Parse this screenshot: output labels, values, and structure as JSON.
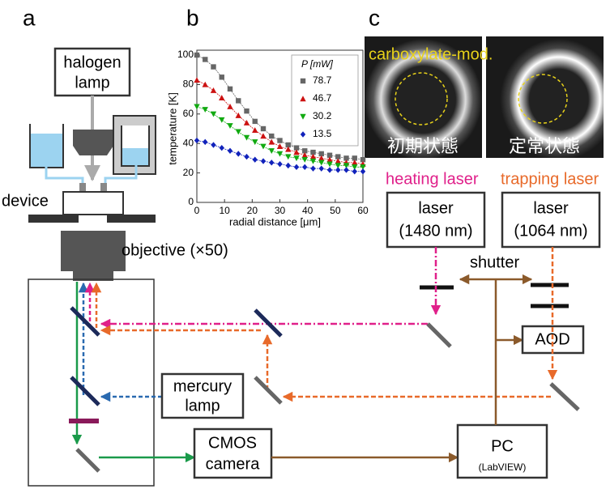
{
  "panel_labels": [
    "a",
    "b",
    "c"
  ],
  "labels": {
    "halogen_lamp": [
      "halogen",
      "lamp"
    ],
    "device": "device",
    "objective": "objective (×50)",
    "mercury_lamp": [
      "mercury",
      "lamp"
    ],
    "cmos_camera": [
      "CMOS",
      "camera"
    ],
    "pc": [
      "PC",
      "(LabVIEW)"
    ],
    "heating_laser": "heating laser",
    "trapping_laser": "trapping laser",
    "laser_1480": [
      "laser",
      "(1480 nm)"
    ],
    "laser_1064": [
      "laser",
      "(1064 nm)"
    ],
    "shutter": "shutter",
    "aod": "AOD",
    "carboxylate": "carboxylate-mod.",
    "initial_state": "初期状態",
    "steady_state": "定常状態"
  },
  "chart_data": {
    "type": "scatter_line",
    "xlabel": "radial distance [μm]",
    "ylabel": "temperature [K]",
    "legend_title": "P [mW]",
    "x": [
      0,
      3,
      6,
      9,
      12,
      15,
      18,
      21,
      24,
      27,
      30,
      33,
      36,
      39,
      42,
      45,
      48,
      51,
      54,
      57,
      60
    ],
    "series": [
      {
        "name": "78.7",
        "color": "#666666",
        "marker": "square",
        "values": [
          100,
          97,
          92,
          85,
          77,
          69,
          62,
          55,
          50,
          45,
          42,
          39,
          37,
          35,
          34,
          33,
          32,
          31,
          30,
          30,
          29
        ]
      },
      {
        "name": "46.7",
        "color": "#cc1111",
        "marker": "triangle-up",
        "values": [
          83,
          80,
          76,
          71,
          65,
          59,
          54,
          49,
          45,
          41,
          38,
          36,
          34,
          32,
          31,
          30,
          29,
          28,
          27,
          27,
          26
        ]
      },
      {
        "name": "30.2",
        "color": "#11aa11",
        "marker": "triangle-down",
        "values": [
          65,
          63,
          60,
          56,
          52,
          48,
          44,
          41,
          38,
          35,
          33,
          31,
          30,
          29,
          28,
          27,
          26,
          25,
          25,
          24,
          24
        ]
      },
      {
        "name": "13.5",
        "color": "#1122bb",
        "marker": "diamond",
        "values": [
          42,
          41,
          39,
          37,
          35,
          33,
          31,
          29,
          28,
          27,
          26,
          25,
          24,
          24,
          23,
          23,
          22,
          22,
          22,
          21,
          21
        ]
      }
    ],
    "xlim": [
      0,
      60
    ],
    "xticks": [
      0,
      10,
      20,
      30,
      40,
      50,
      60
    ],
    "ylim": [
      0,
      100
    ],
    "yticks": [
      0,
      20,
      40,
      60,
      80,
      100
    ]
  }
}
